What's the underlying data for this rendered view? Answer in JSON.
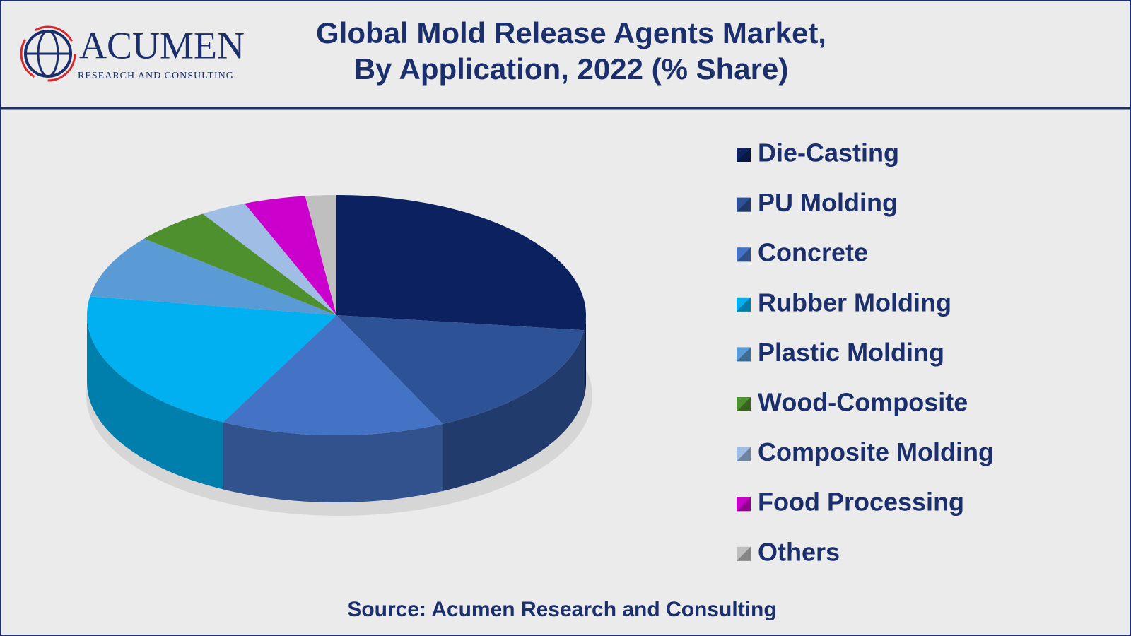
{
  "logo": {
    "name": "ACUMEN",
    "tagline": "RESEARCH AND CONSULTING"
  },
  "chart_data": {
    "type": "pie",
    "title": "Global Mold Release Agents Market,",
    "subtitle": "By Application, 2022 (% Share)",
    "source": "Source: Acumen Research and Consulting",
    "categories": [
      "Die-Casting",
      "PU Molding",
      "Concrete",
      "Rubber Molding",
      "Plastic Molding",
      "Wood-Composite",
      "Composite Molding",
      "Food Processing",
      "Others"
    ],
    "values": [
      27,
      16,
      14.5,
      20,
      8.5,
      5,
      3,
      4,
      2
    ],
    "colors": [
      "#0b2160",
      "#2e5296",
      "#4472c4",
      "#00b0f0",
      "#5b9bd5",
      "#4e8f2e",
      "#a0bde6",
      "#cc00cc",
      "#bfbfbf"
    ],
    "legend": "right"
  }
}
